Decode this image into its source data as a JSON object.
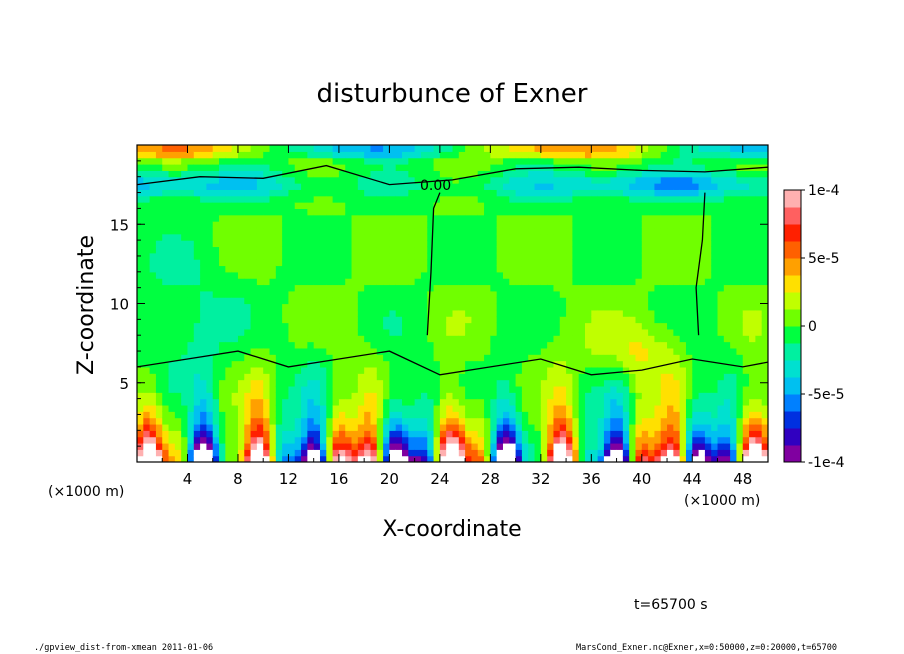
{
  "chart_data": {
    "type": "heatmap",
    "title": "disturbunce of Exner",
    "xlabel": "X-coordinate",
    "ylabel": "Z-coordinate",
    "x_unit_label": "(×1000 m)",
    "y_unit_label": "(×1000 m)",
    "xlim": [
      0,
      50
    ],
    "ylim": [
      0,
      20
    ],
    "x_ticks": [
      "4",
      "8",
      "12",
      "16",
      "20",
      "24",
      "28",
      "32",
      "36",
      "40",
      "44",
      "48"
    ],
    "y_ticks": [
      "5",
      "10",
      "15"
    ],
    "contour_label": "0.00",
    "colorbar": {
      "range": [
        -0.0001,
        0.0001
      ],
      "tick_labels": [
        "1e-4",
        "5e-5",
        "0",
        "-5e-5",
        "-1e-4"
      ],
      "colors": [
        "#8000a0",
        "#3000c0",
        "#0030e0",
        "#0080ff",
        "#00c0f0",
        "#00e0d0",
        "#00f0a0",
        "#00ff40",
        "#70ff00",
        "#c0ff00",
        "#ffe000",
        "#ffa000",
        "#ff6000",
        "#ff2000",
        "#ff6060",
        "#ffb0b0"
      ]
    },
    "time_label": "t=65700 s",
    "footer_left": "./gpview_dist-from-xmean  2011-01-06",
    "footer_right": "MarsCond_Exner.nc@Exner,x=0:50000,z=0:20000,t=65700"
  }
}
